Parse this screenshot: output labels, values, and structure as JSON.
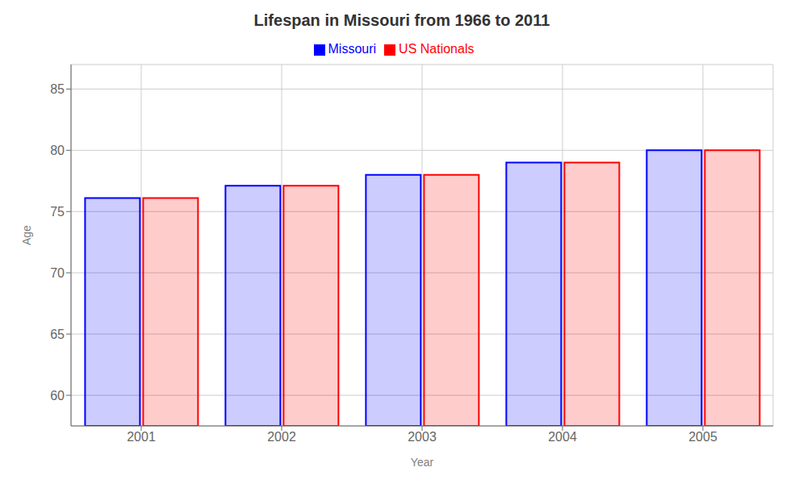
{
  "chart_data": {
    "type": "bar",
    "title": "Lifespan in Missouri from 1966 to 2011",
    "xlabel": "Year",
    "ylabel": "Age",
    "categories": [
      "2001",
      "2002",
      "2003",
      "2004",
      "2005"
    ],
    "series": [
      {
        "name": "Missouri",
        "color": "#0000ff",
        "values": [
          76.1,
          77.1,
          78.0,
          79.0,
          80.0
        ]
      },
      {
        "name": "US Nationals",
        "color": "#ff0000",
        "values": [
          76.1,
          77.1,
          78.0,
          79.0,
          80.0
        ]
      }
    ],
    "ylim": [
      57.5,
      87
    ],
    "yticks": [
      60,
      65,
      70,
      75,
      80,
      85
    ],
    "grid": true,
    "legend": "top"
  }
}
